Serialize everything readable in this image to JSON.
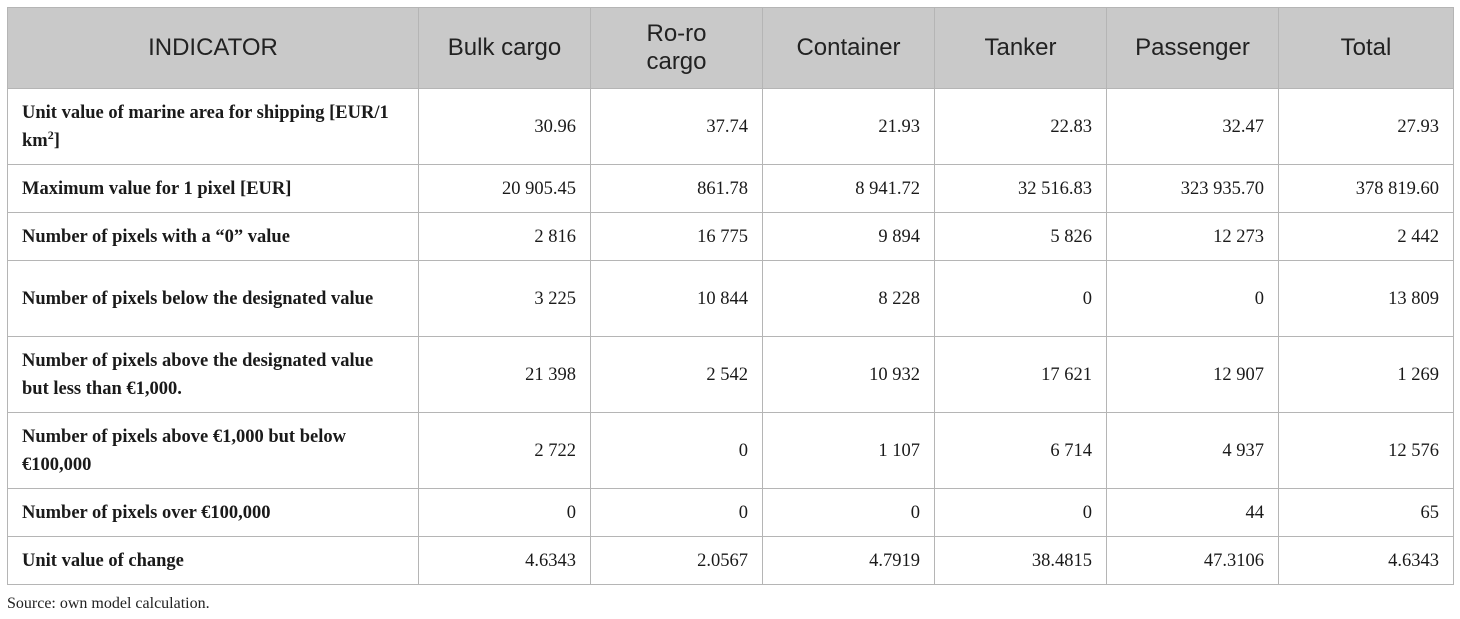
{
  "table": {
    "headers": [
      "INDICATOR",
      "Bulk cargo",
      "Ro-ro cargo",
      "Container",
      "Tanker",
      "Passenger",
      "Total"
    ],
    "rows": [
      {
        "label_main": "Unit value of marine area for shipping [EUR/1 km",
        "label_sup": "2",
        "label_end": "]",
        "values": [
          "30.96",
          "37.74",
          "21.93",
          "22.83",
          "32.47",
          "27.93"
        ]
      },
      {
        "label": "Maximum value for 1 pixel [EUR]",
        "values": [
          "20 905.45",
          "861.78",
          "8 941.72",
          "32 516.83",
          "323 935.70",
          "378 819.60"
        ]
      },
      {
        "label": "Number of pixels with a “0” value",
        "values": [
          "2 816",
          "16 775",
          "9 894",
          "5 826",
          "12 273",
          "2 442"
        ]
      },
      {
        "label": "Number of pixels below the designated value",
        "values": [
          "3 225",
          "10 844",
          "8 228",
          "0",
          "0",
          "13 809"
        ]
      },
      {
        "label": "Number of pixels above the designated value but less than €1,000.",
        "values": [
          "21 398",
          "2 542",
          "10 932",
          "17 621",
          "12 907",
          "1 269"
        ]
      },
      {
        "label": "Number of pixels above €1,000 but below €100,000",
        "values": [
          "2 722",
          "0",
          "1 107",
          "6 714",
          "4 937",
          "12 576"
        ]
      },
      {
        "label": "Number of pixels over €100,000",
        "values": [
          "0",
          "0",
          "0",
          "0",
          "44",
          "65"
        ]
      },
      {
        "label": "Unit value of change",
        "values": [
          "4.6343",
          "2.0567",
          "4.7919",
          "38.4815",
          "47.3106",
          "4.6343"
        ]
      }
    ]
  },
  "source": "Source: own model calculation."
}
